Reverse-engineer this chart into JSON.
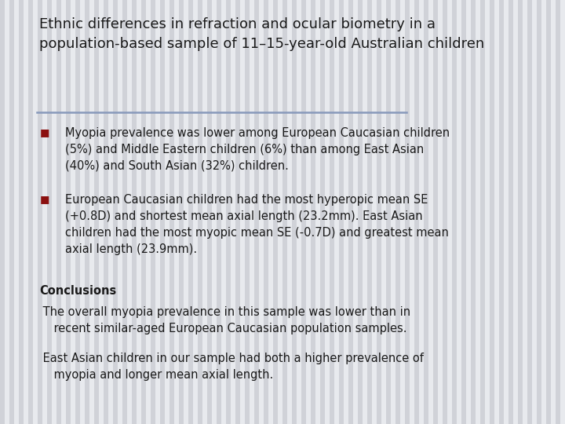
{
  "title": "Ethnic differences in refraction and ocular biometry in a\npopulation-based sample of 11–15-year-old Australian children",
  "title_fontsize": 13,
  "title_color": "#1a1a1a",
  "background_color": "#e0e2e8",
  "text_color": "#1a1a1a",
  "bullet_color": "#8b1010",
  "separator_color": "#8899bb",
  "bullet1": "Myopia prevalence was lower among European Caucasian children\n(5%) and Middle Eastern children (6%) than among East Asian\n(40%) and South Asian (32%) children.",
  "bullet2": "European Caucasian children had the most hyperopic mean SE\n(+0.8D) and shortest mean axial length (23.2mm). East Asian\nchildren had the most myopic mean SE (-0.7D) and greatest mean\naxial length (23.9mm).",
  "conclusions_label": "Conclusions",
  "conclusion1": " The overall myopia prevalence in this sample was lower than in\n    recent similar-aged European Caucasian population samples.",
  "conclusion2": " East Asian children in our sample had both a higher prevalence of\n    myopia and longer mean axial length.",
  "body_fontsize": 10.5,
  "bold_fontsize": 10.5,
  "stripe_color": "#d0d2d8",
  "stripe_color2": "#e8eaee"
}
